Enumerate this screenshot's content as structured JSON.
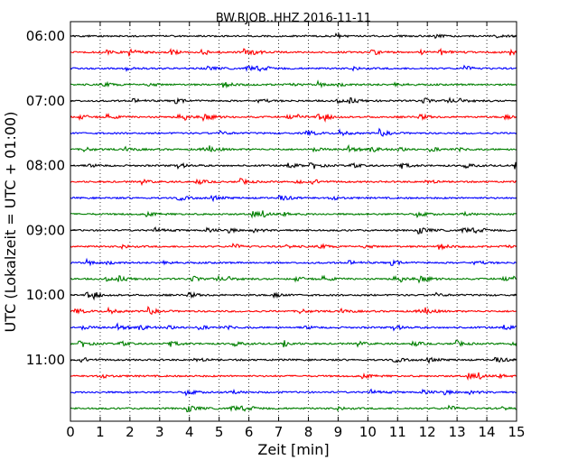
{
  "chart_data": {
    "type": "line",
    "title": "BW.RJOB..HHZ 2016-11-11",
    "xlabel": "Zeit  [min]",
    "ylabel": "UTC (Lokalzeit = UTC + 01:00)",
    "xlim": [
      0,
      15
    ],
    "x_ticks": [
      "0",
      "1",
      "2",
      "3",
      "4",
      "5",
      "6",
      "7",
      "8",
      "9",
      "10",
      "11",
      "12",
      "13",
      "14",
      "15"
    ],
    "y_ticks": [
      "06:00",
      "07:00",
      "08:00",
      "09:00",
      "10:00",
      "11:00"
    ],
    "trace_colors": [
      "#000000",
      "#ff0000",
      "#0000ff",
      "#007f00"
    ],
    "traces_per_hour": 4,
    "trace_count": 24,
    "x_grid": "dotted",
    "y_grid": false
  }
}
